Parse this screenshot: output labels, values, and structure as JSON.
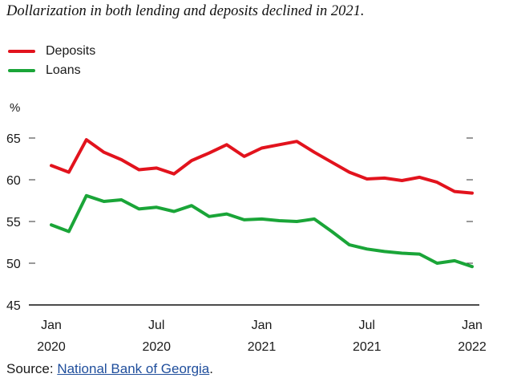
{
  "title": "Dollarization in both lending and deposits declined in 2021.",
  "source": {
    "prefix": "Source: ",
    "link_text": "National Bank of Georgia",
    "suffix": "."
  },
  "chart_data": {
    "type": "line",
    "title": "Dollarization in both lending and deposits declined in 2021.",
    "ylabel": "%",
    "ylim": [
      45,
      65
    ],
    "yticks": [
      "45",
      "50",
      "55",
      "60",
      "65"
    ],
    "xticks": [
      {
        "month": "Jan",
        "year": "2020"
      },
      {
        "month": "Jul",
        "year": "2020"
      },
      {
        "month": "Jan",
        "year": "2021"
      },
      {
        "month": "Jul",
        "year": "2021"
      },
      {
        "month": "Jan",
        "year": "2022"
      }
    ],
    "x": [
      "2020-01",
      "2020-02",
      "2020-03",
      "2020-04",
      "2020-05",
      "2020-06",
      "2020-07",
      "2020-08",
      "2020-09",
      "2020-10",
      "2020-11",
      "2020-12",
      "2021-01",
      "2021-02",
      "2021-03",
      "2021-04",
      "2021-05",
      "2021-06",
      "2021-07",
      "2021-08",
      "2021-09",
      "2021-10",
      "2021-11",
      "2021-12",
      "2022-01"
    ],
    "series": [
      {
        "name": "Deposits",
        "color": "#e2131d",
        "values": [
          61.7,
          60.9,
          64.8,
          63.3,
          62.4,
          61.2,
          61.4,
          60.7,
          62.3,
          63.2,
          64.2,
          62.8,
          63.8,
          64.2,
          64.6,
          63.3,
          62.1,
          60.9,
          60.1,
          60.2,
          59.9,
          60.3,
          59.7,
          58.6,
          58.4
        ]
      },
      {
        "name": "Loans",
        "color": "#1aa538",
        "values": [
          54.6,
          53.8,
          58.1,
          57.4,
          57.6,
          56.5,
          56.7,
          56.2,
          56.9,
          55.6,
          55.9,
          55.2,
          55.3,
          55.1,
          55.0,
          55.3,
          53.8,
          52.2,
          51.7,
          51.4,
          51.2,
          51.1,
          50.0,
          50.3,
          49.6
        ]
      }
    ],
    "grid": false,
    "legend_position": "top-left"
  }
}
